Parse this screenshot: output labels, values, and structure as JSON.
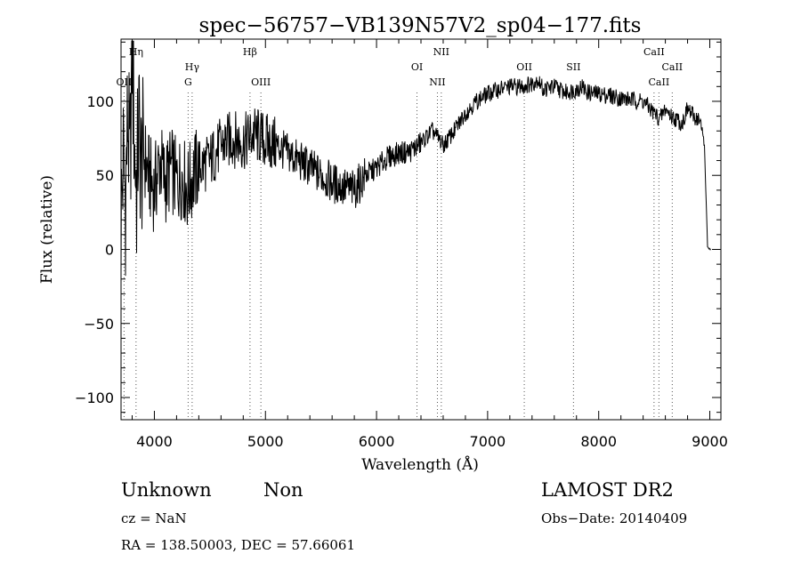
{
  "chart_data": {
    "type": "line",
    "title": "spec−56757−VB139N57V2_sp04−177.fits",
    "xlabel": "Wavelength (Å)",
    "ylabel": "Flux (relative)",
    "xlim": [
      3700,
      9100
    ],
    "ylim": [
      -115,
      142
    ],
    "xticks": [
      4000,
      5000,
      6000,
      7000,
      8000,
      9000
    ],
    "xtick_labels": [
      "4000",
      "5000",
      "6000",
      "7000",
      "8000",
      "9000"
    ],
    "yticks": [
      -100,
      -50,
      0,
      50,
      100
    ],
    "ytick_labels": [
      "−100",
      "−50",
      "0",
      "50",
      "100"
    ],
    "grid": false,
    "legend": "none",
    "series": [
      {
        "x": [
          3700,
          3720,
          3740,
          3760,
          3780,
          3800,
          3820,
          3840,
          3860,
          3880,
          3900,
          3950,
          4000,
          4050,
          4100,
          4150,
          4200,
          4250,
          4300,
          4350,
          4400,
          4500,
          4600,
          4700,
          4800,
          4900,
          5000,
          5100,
          5200,
          5300,
          5400,
          5500,
          5600,
          5700,
          5800,
          5900,
          6000,
          6100,
          6200,
          6300,
          6400,
          6500,
          6560,
          6600,
          6700,
          6800,
          6900,
          7000,
          7100,
          7200,
          7300,
          7400,
          7450,
          7500,
          7600,
          7700,
          7800,
          7850,
          7900,
          8000,
          8100,
          8200,
          8300,
          8400,
          8500,
          8550,
          8600,
          8650,
          8700,
          8750,
          8800,
          8850,
          8900,
          8950,
          8980,
          9000,
          9010
        ],
        "y": [
          20,
          60,
          35,
          90,
          50,
          135,
          70,
          40,
          85,
          55,
          65,
          50,
          40,
          60,
          45,
          55,
          45,
          50,
          40,
          50,
          55,
          60,
          70,
          75,
          72,
          78,
          73,
          70,
          65,
          60,
          55,
          50,
          45,
          42,
          40,
          50,
          55,
          62,
          65,
          66,
          72,
          80,
          75,
          70,
          80,
          92,
          100,
          105,
          108,
          110,
          110,
          112,
          115,
          108,
          110,
          106,
          108,
          110,
          106,
          105,
          104,
          102,
          101,
          100,
          92,
          88,
          95,
          90,
          88,
          85,
          95,
          90,
          88,
          75,
          2,
          0,
          0
        ]
      }
    ],
    "annotations": [
      {
        "label": "Hη",
        "x": 3835,
        "row": 1
      },
      {
        "label": "OII",
        "x": 3727,
        "row": 3
      },
      {
        "label": "Hγ",
        "x": 4340,
        "row": 2
      },
      {
        "label": "G",
        "x": 4304,
        "row": 3
      },
      {
        "label": "Hβ",
        "x": 4861,
        "row": 1
      },
      {
        "label": "OIII",
        "x": 4959,
        "row": 3
      },
      {
        "label": "NII",
        "x": 6583,
        "row": 1
      },
      {
        "label": "OI",
        "x": 6364,
        "row": 2
      },
      {
        "label": "NII",
        "x": 6548,
        "row": 3
      },
      {
        "label": "OII",
        "x": 7330,
        "row": 2
      },
      {
        "label": "SII",
        "x": 7773,
        "row": 2
      },
      {
        "label": "CaII",
        "x": 8498,
        "row": 1
      },
      {
        "label": "CaII",
        "x": 8662,
        "row": 2
      },
      {
        "label": "CaII",
        "x": 8542,
        "row": 3
      }
    ],
    "line_markers_x": [
      3727,
      3835,
      4304,
      4340,
      4861,
      4959,
      6364,
      6548,
      6583,
      7330,
      7773,
      8498,
      8542,
      8662
    ]
  },
  "info": {
    "class": "Unknown",
    "subclass": "Non",
    "survey": "LAMOST DR2",
    "cz": "cz = NaN",
    "obs_date": "Obs−Date: 20140409",
    "coords": "RA = 138.50003, DEC =  57.66061"
  }
}
